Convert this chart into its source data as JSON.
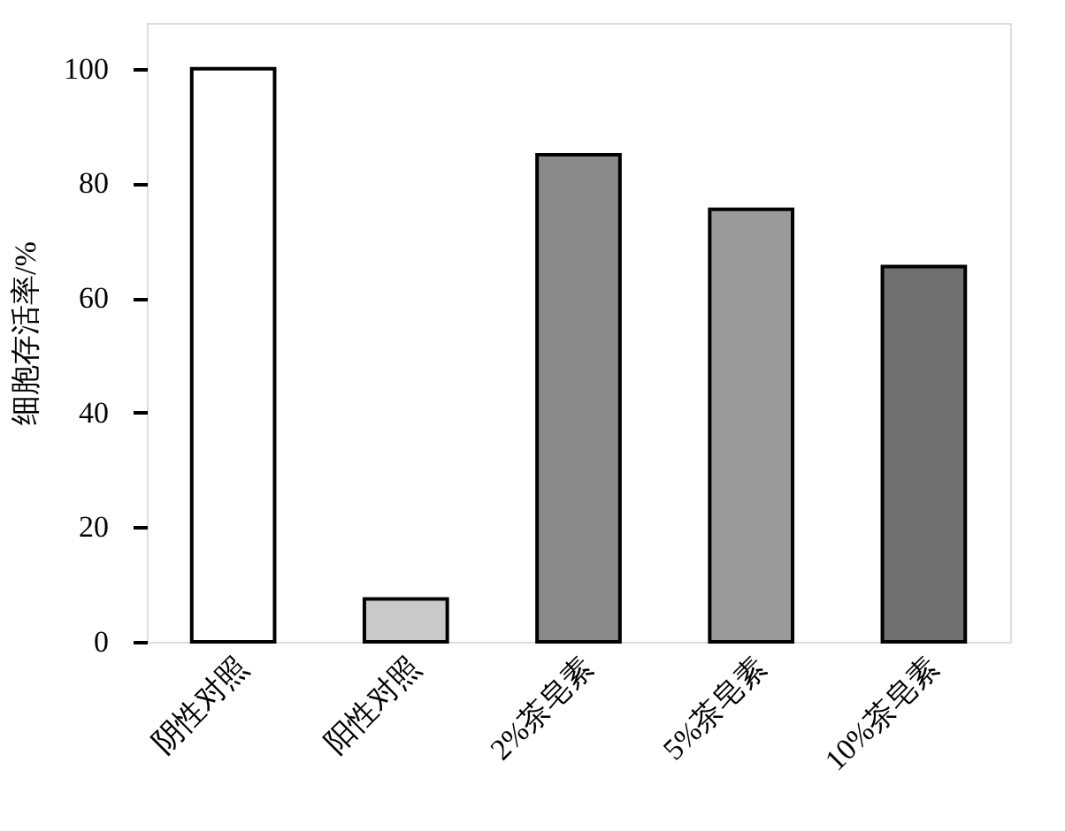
{
  "chart_data": {
    "type": "bar",
    "categories": [
      "阴性对照",
      "阳性对照",
      "2%茶皂素",
      "5%茶皂素",
      "10%茶皂素"
    ],
    "values": [
      100,
      7.5,
      85,
      75.5,
      65.5
    ],
    "colors": [
      "#ffffff",
      "#c8c9c8",
      "#8a8a8a",
      "#9a9a9a",
      "#707070"
    ],
    "ylabel": "细胞存活率/%",
    "ylim": [
      0,
      108
    ],
    "yticks": [
      0,
      20,
      40,
      60,
      80,
      100
    ],
    "grid": false
  }
}
